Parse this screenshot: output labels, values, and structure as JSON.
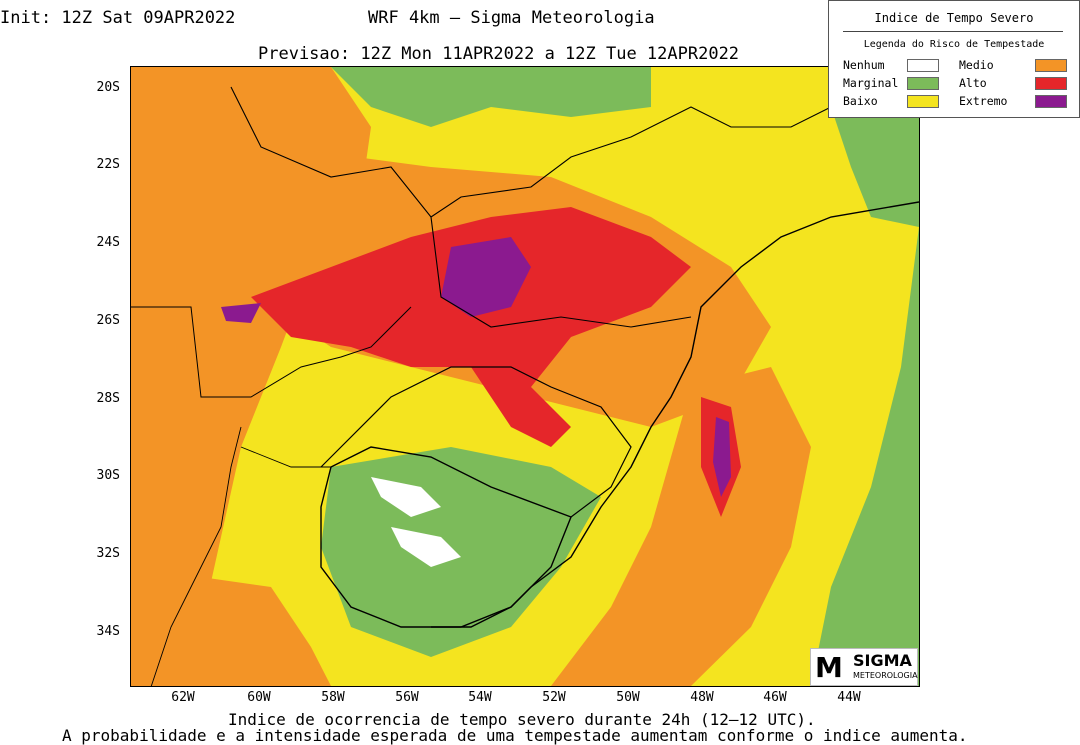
{
  "header": {
    "init": "Init: 12Z Sat 09APR2022",
    "model": "WRF 4km — Sigma Meteorologia",
    "forecast": "Previsao: 12Z Mon 11APR2022 a 12Z Tue 12APR2022"
  },
  "legend": {
    "title": "Indice de Tempo Severo",
    "subtitle": "Legenda do Risco de Tempestade",
    "items": [
      {
        "label": "Nenhum",
        "color": "#ffffff"
      },
      {
        "label": "Marginal",
        "color": "#7cbb5a"
      },
      {
        "label": "Baixo",
        "color": "#f4e41f"
      },
      {
        "label": "Medio",
        "color": "#f39426"
      },
      {
        "label": "Alto",
        "color": "#e5262a"
      },
      {
        "label": "Extremo",
        "color": "#8b1a8f"
      }
    ]
  },
  "map": {
    "lat_ticks": [
      "20S",
      "22S",
      "24S",
      "26S",
      "28S",
      "30S",
      "32S",
      "34S"
    ],
    "lon_ticks": [
      "62W",
      "60W",
      "58W",
      "56W",
      "54W",
      "52W",
      "50W",
      "48W",
      "46W",
      "44W"
    ]
  },
  "logo": {
    "big": "SIGMA",
    "small": "METEOROLOGIA",
    "mark": "M"
  },
  "footer": {
    "line1": "Indice de ocorrencia de tempo severo durante 24h (12–12 UTC).",
    "line2": "A probabilidade e a intensidade esperada de uma tempestade aumentam conforme o indice aumenta."
  }
}
